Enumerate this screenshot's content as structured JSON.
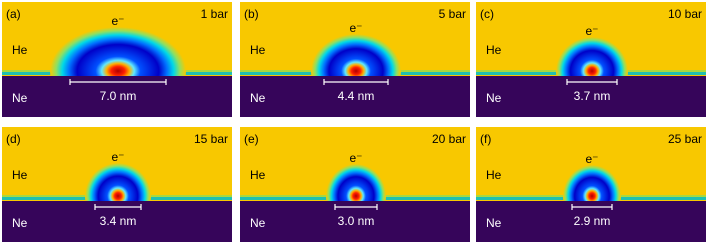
{
  "panels": [
    {
      "label": "(a)",
      "pressure": "1 bar",
      "upper": "He",
      "lower": "Ne",
      "particle": "e⁻",
      "width": "7.0 nm"
    },
    {
      "label": "(b)",
      "pressure": "5 bar",
      "upper": "He",
      "lower": "Ne",
      "particle": "e⁻",
      "width": "4.4 nm"
    },
    {
      "label": "(c)",
      "pressure": "10 bar",
      "upper": "He",
      "lower": "Ne",
      "particle": "e⁻",
      "width": "3.7 nm"
    },
    {
      "label": "(d)",
      "pressure": "15 bar",
      "upper": "He",
      "lower": "Ne",
      "particle": "e⁻",
      "width": "3.4 nm"
    },
    {
      "label": "(e)",
      "pressure": "20 bar",
      "upper": "He",
      "lower": "Ne",
      "particle": "e⁻",
      "width": "3.0 nm"
    },
    {
      "label": "(f)",
      "pressure": "25 bar",
      "upper": "He",
      "lower": "Ne",
      "particle": "e⁻",
      "width": "2.9 nm"
    }
  ]
}
